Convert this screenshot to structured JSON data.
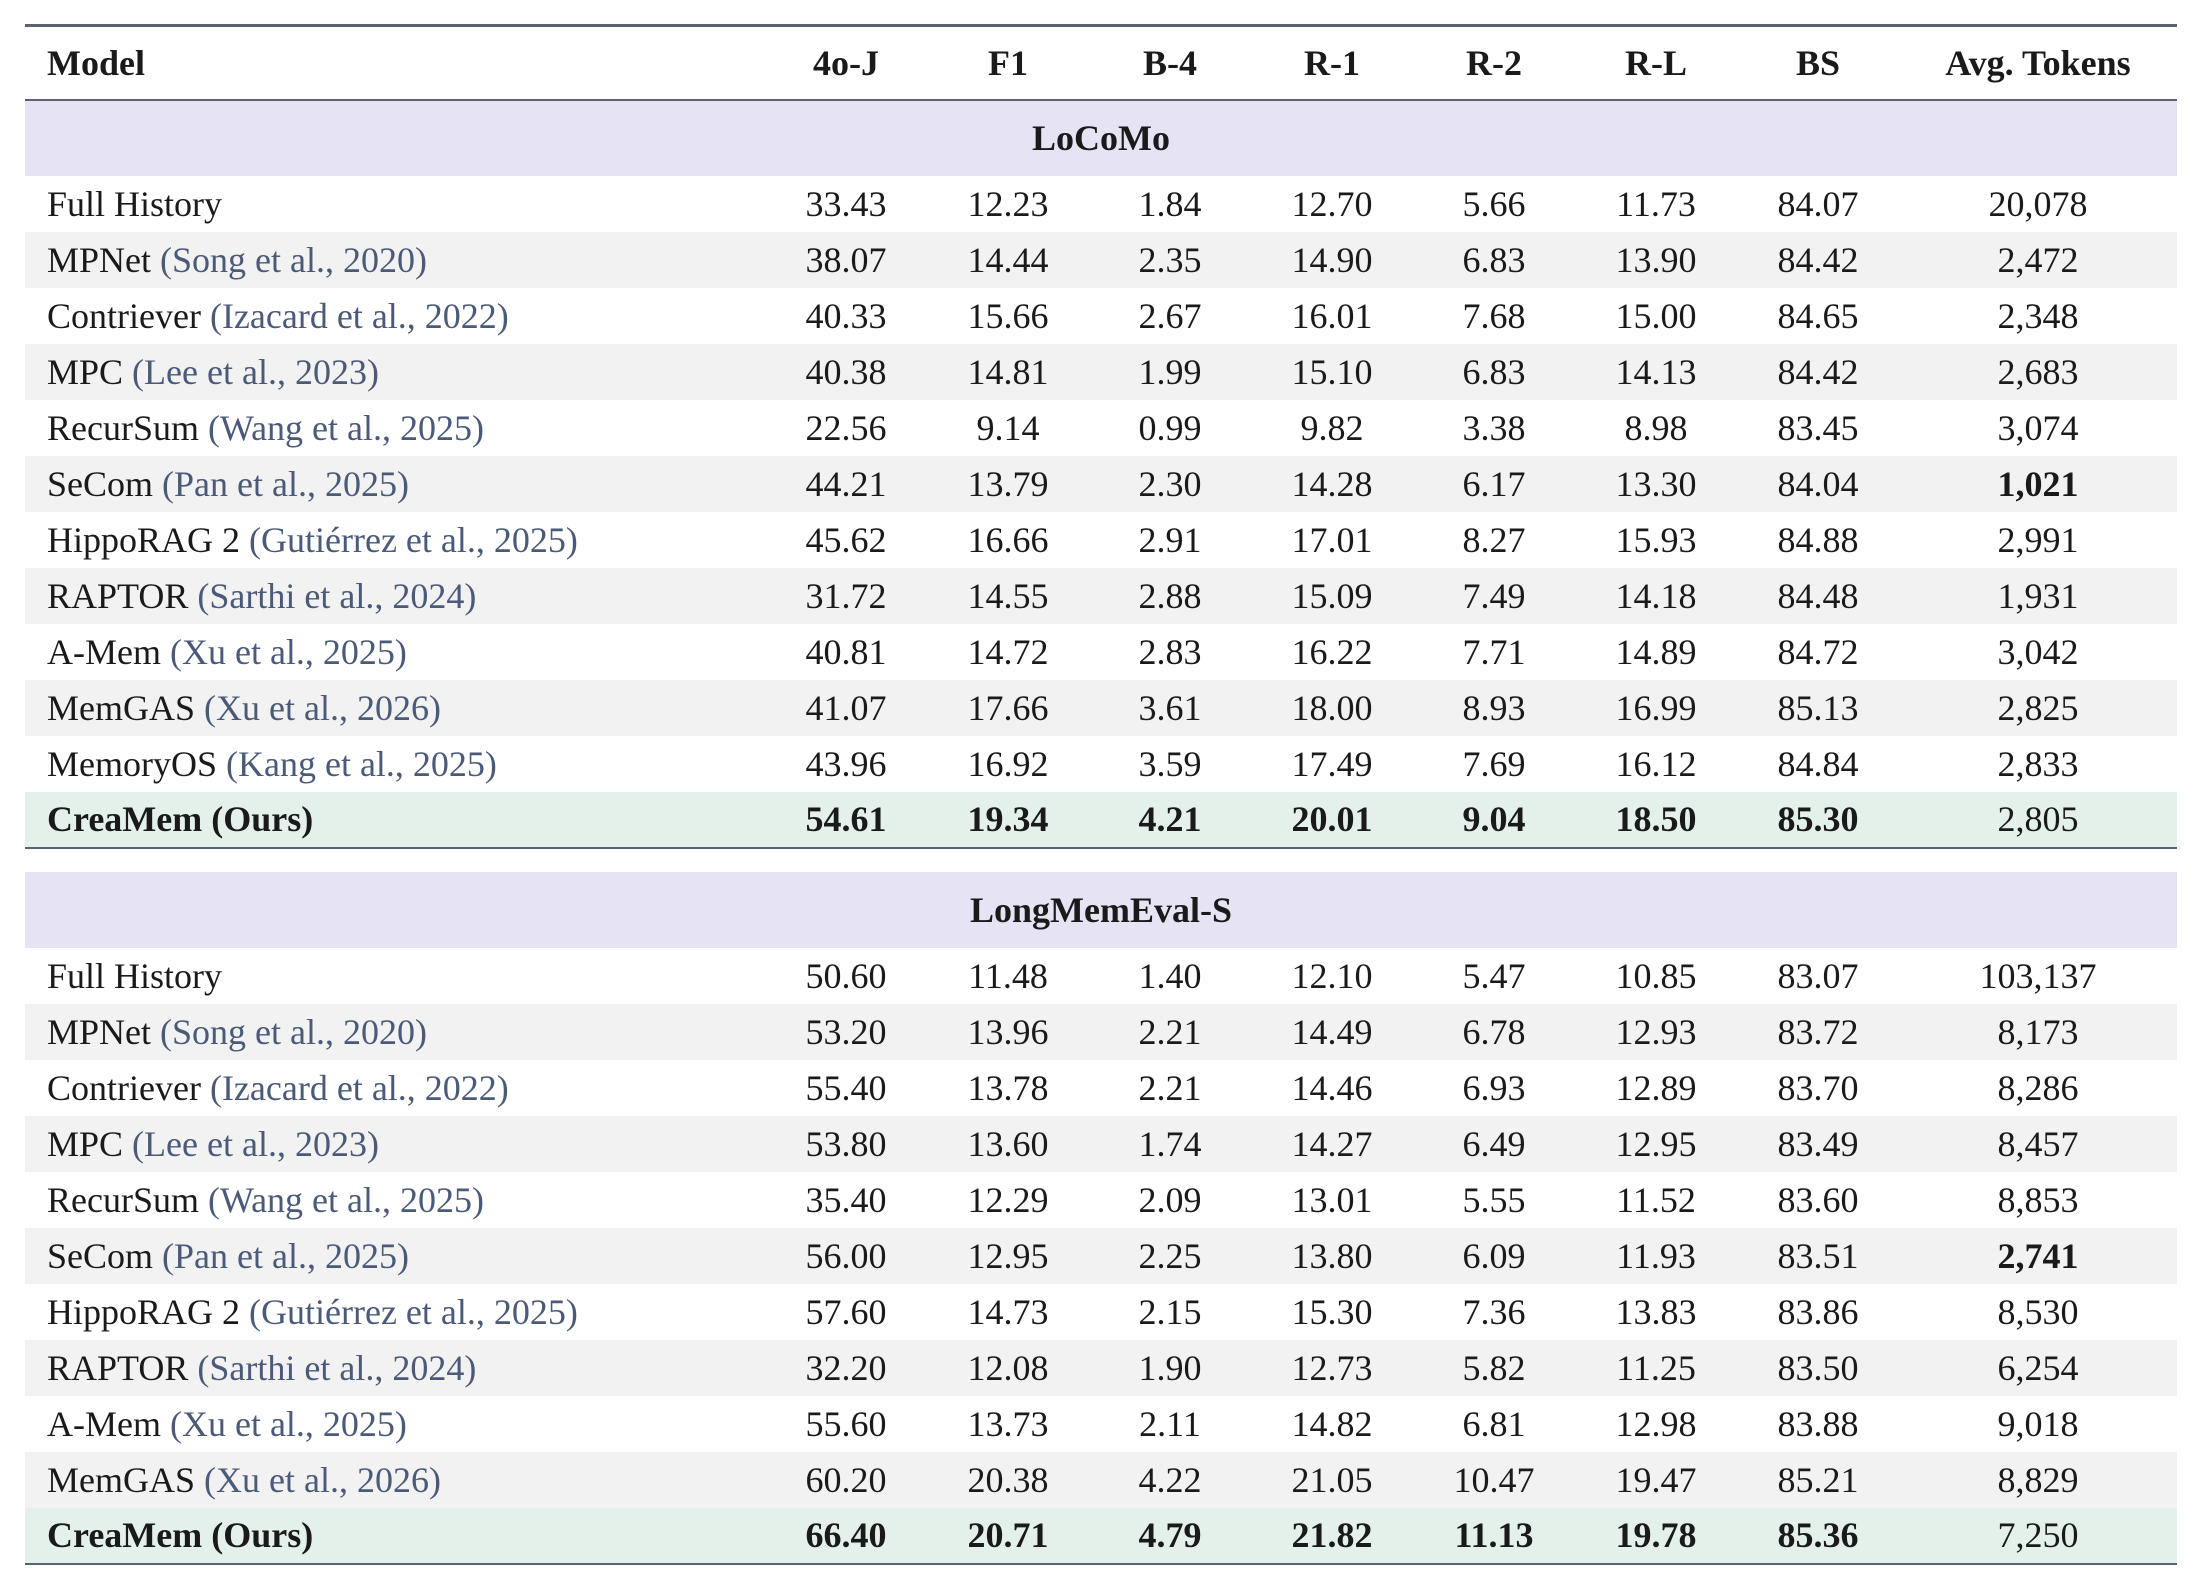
{
  "header": {
    "model": "Model",
    "cols": [
      "4o-J",
      "F1",
      "B-4",
      "R-1",
      "R-2",
      "R-L",
      "BS",
      "Avg. Tokens"
    ]
  },
  "sections": [
    {
      "title": "LoCoMo",
      "rows": [
        {
          "model": "Full History",
          "cite": "",
          "values": [
            "33.43",
            "12.23",
            "1.84",
            "12.70",
            "5.66",
            "11.73",
            "84.07",
            "20,078"
          ]
        },
        {
          "model": "MPNet",
          "cite": "(Song et al., 2020)",
          "values": [
            "38.07",
            "14.44",
            "2.35",
            "14.90",
            "6.83",
            "13.90",
            "84.42",
            "2,472"
          ]
        },
        {
          "model": "Contriever",
          "cite": "(Izacard et al., 2022)",
          "values": [
            "40.33",
            "15.66",
            "2.67",
            "16.01",
            "7.68",
            "15.00",
            "84.65",
            "2,348"
          ]
        },
        {
          "model": "MPC",
          "cite": "(Lee et al., 2023)",
          "values": [
            "40.38",
            "14.81",
            "1.99",
            "15.10",
            "6.83",
            "14.13",
            "84.42",
            "2,683"
          ]
        },
        {
          "model": "RecurSum",
          "cite": "(Wang et al., 2025)",
          "values": [
            "22.56",
            "9.14",
            "0.99",
            "9.82",
            "3.38",
            "8.98",
            "83.45",
            "3,074"
          ]
        },
        {
          "model": "SeCom",
          "cite": "(Pan et al., 2025)",
          "values": [
            "44.21",
            "13.79",
            "2.30",
            "14.28",
            "6.17",
            "13.30",
            "84.04",
            "1,021"
          ]
        },
        {
          "model": "HippoRAG 2",
          "cite": "(Gutiérrez et al., 2025)",
          "values": [
            "45.62",
            "16.66",
            "2.91",
            "17.01",
            "8.27",
            "15.93",
            "84.88",
            "2,991"
          ]
        },
        {
          "model": "RAPTOR",
          "cite": "(Sarthi et al., 2024)",
          "values": [
            "31.72",
            "14.55",
            "2.88",
            "15.09",
            "7.49",
            "14.18",
            "84.48",
            "1,931"
          ]
        },
        {
          "model": "A-Mem",
          "cite": "(Xu et al., 2025)",
          "values": [
            "40.81",
            "14.72",
            "2.83",
            "16.22",
            "7.71",
            "14.89",
            "84.72",
            "3,042"
          ]
        },
        {
          "model": "MemGAS",
          "cite": "(Xu et al., 2026)",
          "values": [
            "41.07",
            "17.66",
            "3.61",
            "18.00",
            "8.93",
            "16.99",
            "85.13",
            "2,825"
          ]
        },
        {
          "model": "MemoryOS",
          "cite": "(Kang et al., 2025)",
          "values": [
            "43.96",
            "16.92",
            "3.59",
            "17.49",
            "7.69",
            "16.12",
            "84.84",
            "2,833"
          ]
        },
        {
          "model": "CreaMem (Ours)",
          "cite": "",
          "values": [
            "54.61",
            "19.34",
            "4.21",
            "20.01",
            "9.04",
            "18.50",
            "85.30",
            "2,805"
          ]
        }
      ]
    },
    {
      "title": "LongMemEval-S",
      "rows": [
        {
          "model": "Full History",
          "cite": "",
          "values": [
            "50.60",
            "11.48",
            "1.40",
            "12.10",
            "5.47",
            "10.85",
            "83.07",
            "103,137"
          ]
        },
        {
          "model": "MPNet",
          "cite": "(Song et al., 2020)",
          "values": [
            "53.20",
            "13.96",
            "2.21",
            "14.49",
            "6.78",
            "12.93",
            "83.72",
            "8,173"
          ]
        },
        {
          "model": "Contriever",
          "cite": "(Izacard et al., 2022)",
          "values": [
            "55.40",
            "13.78",
            "2.21",
            "14.46",
            "6.93",
            "12.89",
            "83.70",
            "8,286"
          ]
        },
        {
          "model": "MPC",
          "cite": "(Lee et al., 2023)",
          "values": [
            "53.80",
            "13.60",
            "1.74",
            "14.27",
            "6.49",
            "12.95",
            "83.49",
            "8,457"
          ]
        },
        {
          "model": "RecurSum",
          "cite": "(Wang et al., 2025)",
          "values": [
            "35.40",
            "12.29",
            "2.09",
            "13.01",
            "5.55",
            "11.52",
            "83.60",
            "8,853"
          ]
        },
        {
          "model": "SeCom",
          "cite": "(Pan et al., 2025)",
          "values": [
            "56.00",
            "12.95",
            "2.25",
            "13.80",
            "6.09",
            "11.93",
            "83.51",
            "2,741"
          ]
        },
        {
          "model": "HippoRAG 2",
          "cite": "(Gutiérrez et al., 2025)",
          "values": [
            "57.60",
            "14.73",
            "2.15",
            "15.30",
            "7.36",
            "13.83",
            "83.86",
            "8,530"
          ]
        },
        {
          "model": "RAPTOR",
          "cite": "(Sarthi et al., 2024)",
          "values": [
            "32.20",
            "12.08",
            "1.90",
            "12.73",
            "5.82",
            "11.25",
            "83.50",
            "6,254"
          ]
        },
        {
          "model": "A-Mem",
          "cite": "(Xu et al., 2025)",
          "values": [
            "55.60",
            "13.73",
            "2.11",
            "14.82",
            "6.81",
            "12.98",
            "83.88",
            "9,018"
          ]
        },
        {
          "model": "MemGAS",
          "cite": "(Xu et al., 2026)",
          "values": [
            "60.20",
            "20.38",
            "4.22",
            "21.05",
            "10.47",
            "19.47",
            "85.21",
            "8,829"
          ]
        },
        {
          "model": "CreaMem (Ours)",
          "cite": "",
          "values": [
            "66.40",
            "20.71",
            "4.79",
            "21.82",
            "11.13",
            "19.78",
            "85.36",
            "7,250"
          ]
        }
      ]
    }
  ]
}
